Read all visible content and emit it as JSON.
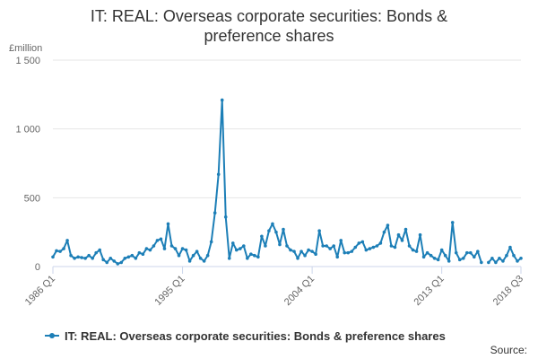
{
  "chart_data": {
    "type": "line",
    "title": "IT: REAL: Overseas corporate securities: Bonds & preference shares",
    "unit_label": "£million",
    "ylim": [
      0,
      1500
    ],
    "y_ticks": [
      0,
      500,
      1000,
      1500
    ],
    "y_tick_labels": [
      "0",
      "500",
      "1 000",
      "1 500"
    ],
    "x_tick_labels": [
      "1986 Q1",
      "1995 Q1",
      "2004 Q1",
      "2013 Q1",
      "2018 Q3"
    ],
    "x_tick_index": [
      0,
      36,
      72,
      108,
      130
    ],
    "grid": true,
    "legend_position": "bottom",
    "source_label": "Source:",
    "colors": {
      "series": "#1d7fb7",
      "grid": "#e6e6e6",
      "axis": "#ccd6eb"
    },
    "series": [
      {
        "name": "IT: REAL: Overseas corporate securities: Bonds & preference shares",
        "values": [
          70,
          115,
          110,
          130,
          190,
          80,
          60,
          70,
          65,
          60,
          80,
          60,
          100,
          120,
          50,
          30,
          60,
          40,
          20,
          30,
          60,
          70,
          80,
          60,
          100,
          90,
          130,
          120,
          150,
          190,
          200,
          130,
          310,
          150,
          130,
          80,
          130,
          120,
          40,
          80,
          110,
          60,
          40,
          80,
          180,
          390,
          670,
          1210,
          360,
          60,
          170,
          120,
          130,
          150,
          60,
          90,
          80,
          70,
          220,
          150,
          260,
          310,
          250,
          160,
          270,
          150,
          120,
          110,
          60,
          110,
          80,
          120,
          110,
          90,
          260,
          150,
          150,
          130,
          150,
          70,
          190,
          100,
          100,
          110,
          140,
          170,
          180,
          120,
          130,
          140,
          150,
          170,
          250,
          300,
          150,
          140,
          230,
          190,
          270,
          150,
          120,
          110,
          230,
          70,
          100,
          80,
          60,
          50,
          120,
          80,
          40,
          320,
          100,
          50,
          60,
          100,
          100,
          70,
          110,
          30,
          null,
          30,
          60,
          30,
          60,
          40,
          80,
          140,
          80,
          40,
          60
        ]
      }
    ]
  }
}
